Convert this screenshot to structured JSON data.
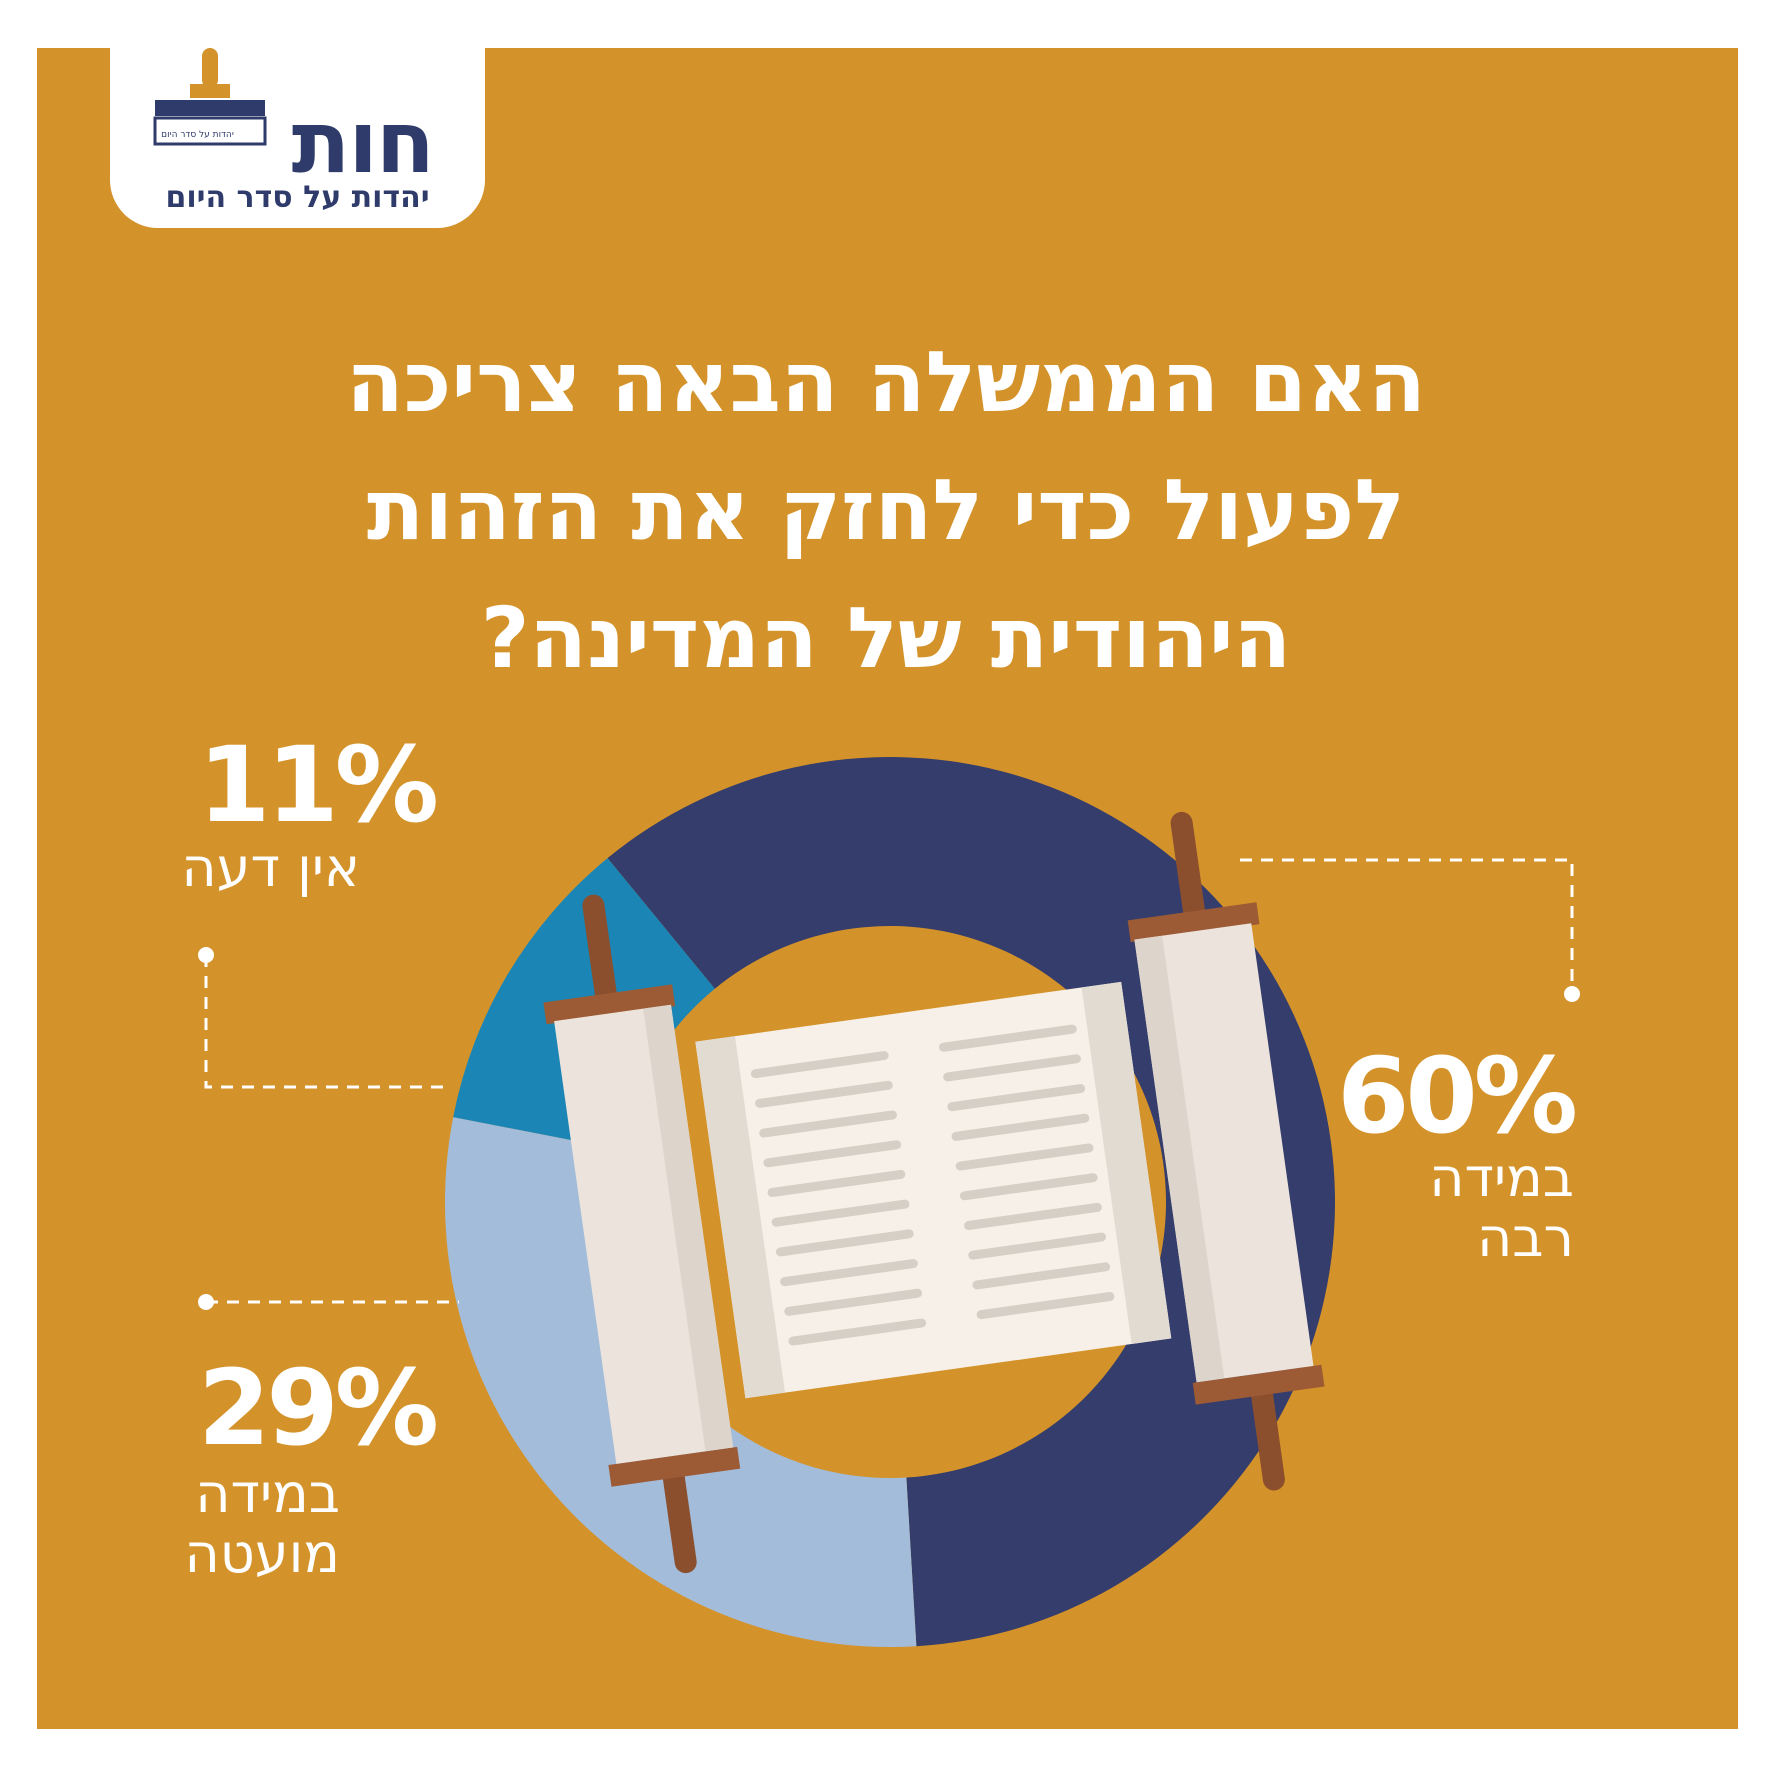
{
  "logo": {
    "name": "חות",
    "tagline": "יהדות על סדר היום",
    "stamp_text": "יהדות על סדר היום"
  },
  "chart_data": {
    "type": "donut",
    "title": "האם הממשלה הבאה צריכה לפעול כדי לחזק את הזהות היהודית של המדינה?",
    "categories": [
      "במידה רבה",
      "במידה מועטה",
      "אין דעה"
    ],
    "values": [
      60,
      29,
      11
    ],
    "value_labels": [
      "60%",
      "29%",
      "11%"
    ],
    "colors": [
      "#343d6b",
      "#a3bcd9",
      "#1b86b5"
    ]
  }
}
